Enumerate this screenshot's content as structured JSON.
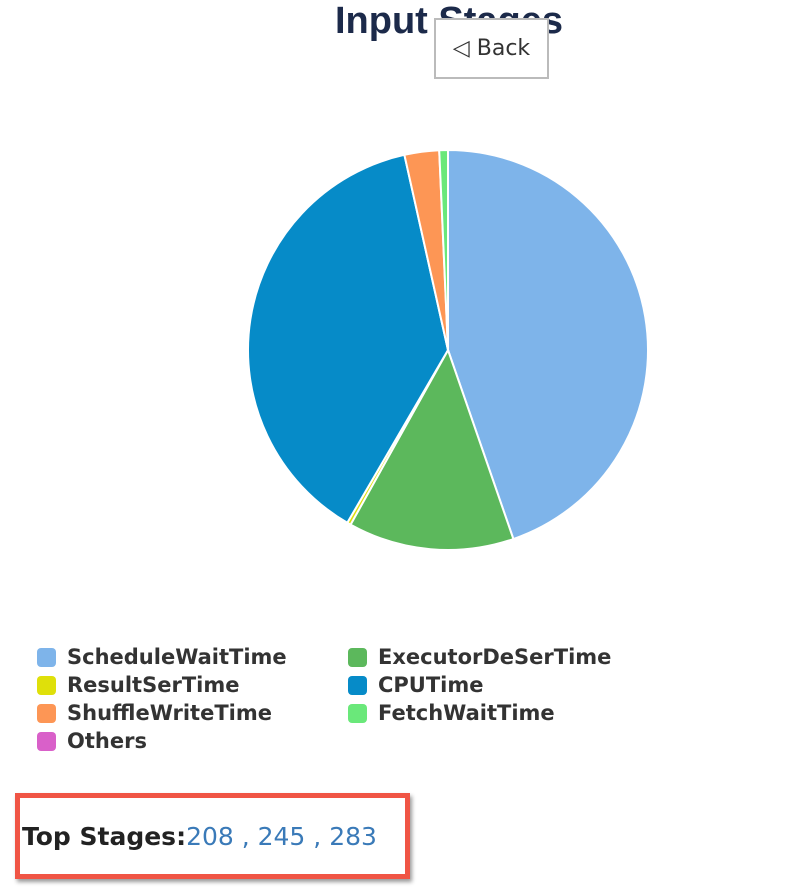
{
  "chart_data": {
    "type": "pie",
    "title": "Input Stages",
    "series": [
      {
        "name": "ScheduleWaitTime",
        "color": "#7eb4ea",
        "values": [
          44.7
        ]
      },
      {
        "name": "ExecutorDeSerTime",
        "color": "#5cb85c",
        "values": [
          13.4
        ]
      },
      {
        "name": "ResultSerTime",
        "color": "#dfe00a",
        "values": [
          0.3
        ]
      },
      {
        "name": "CPUTime",
        "color": "#068bc8",
        "values": [
          38.1
        ]
      },
      {
        "name": "ShuffleWriteTime",
        "color": "#fd9655",
        "values": [
          2.8
        ]
      },
      {
        "name": "FetchWaitTime",
        "color": "#6ae87a",
        "values": [
          0.7
        ]
      },
      {
        "name": "Others",
        "color": "#d960c9",
        "values": [
          0
        ]
      }
    ]
  },
  "back_button": "◁ Back",
  "top_stages": {
    "label": "Top Stages:",
    "separator": " , ",
    "stages": [
      "208",
      "245",
      "283"
    ]
  }
}
